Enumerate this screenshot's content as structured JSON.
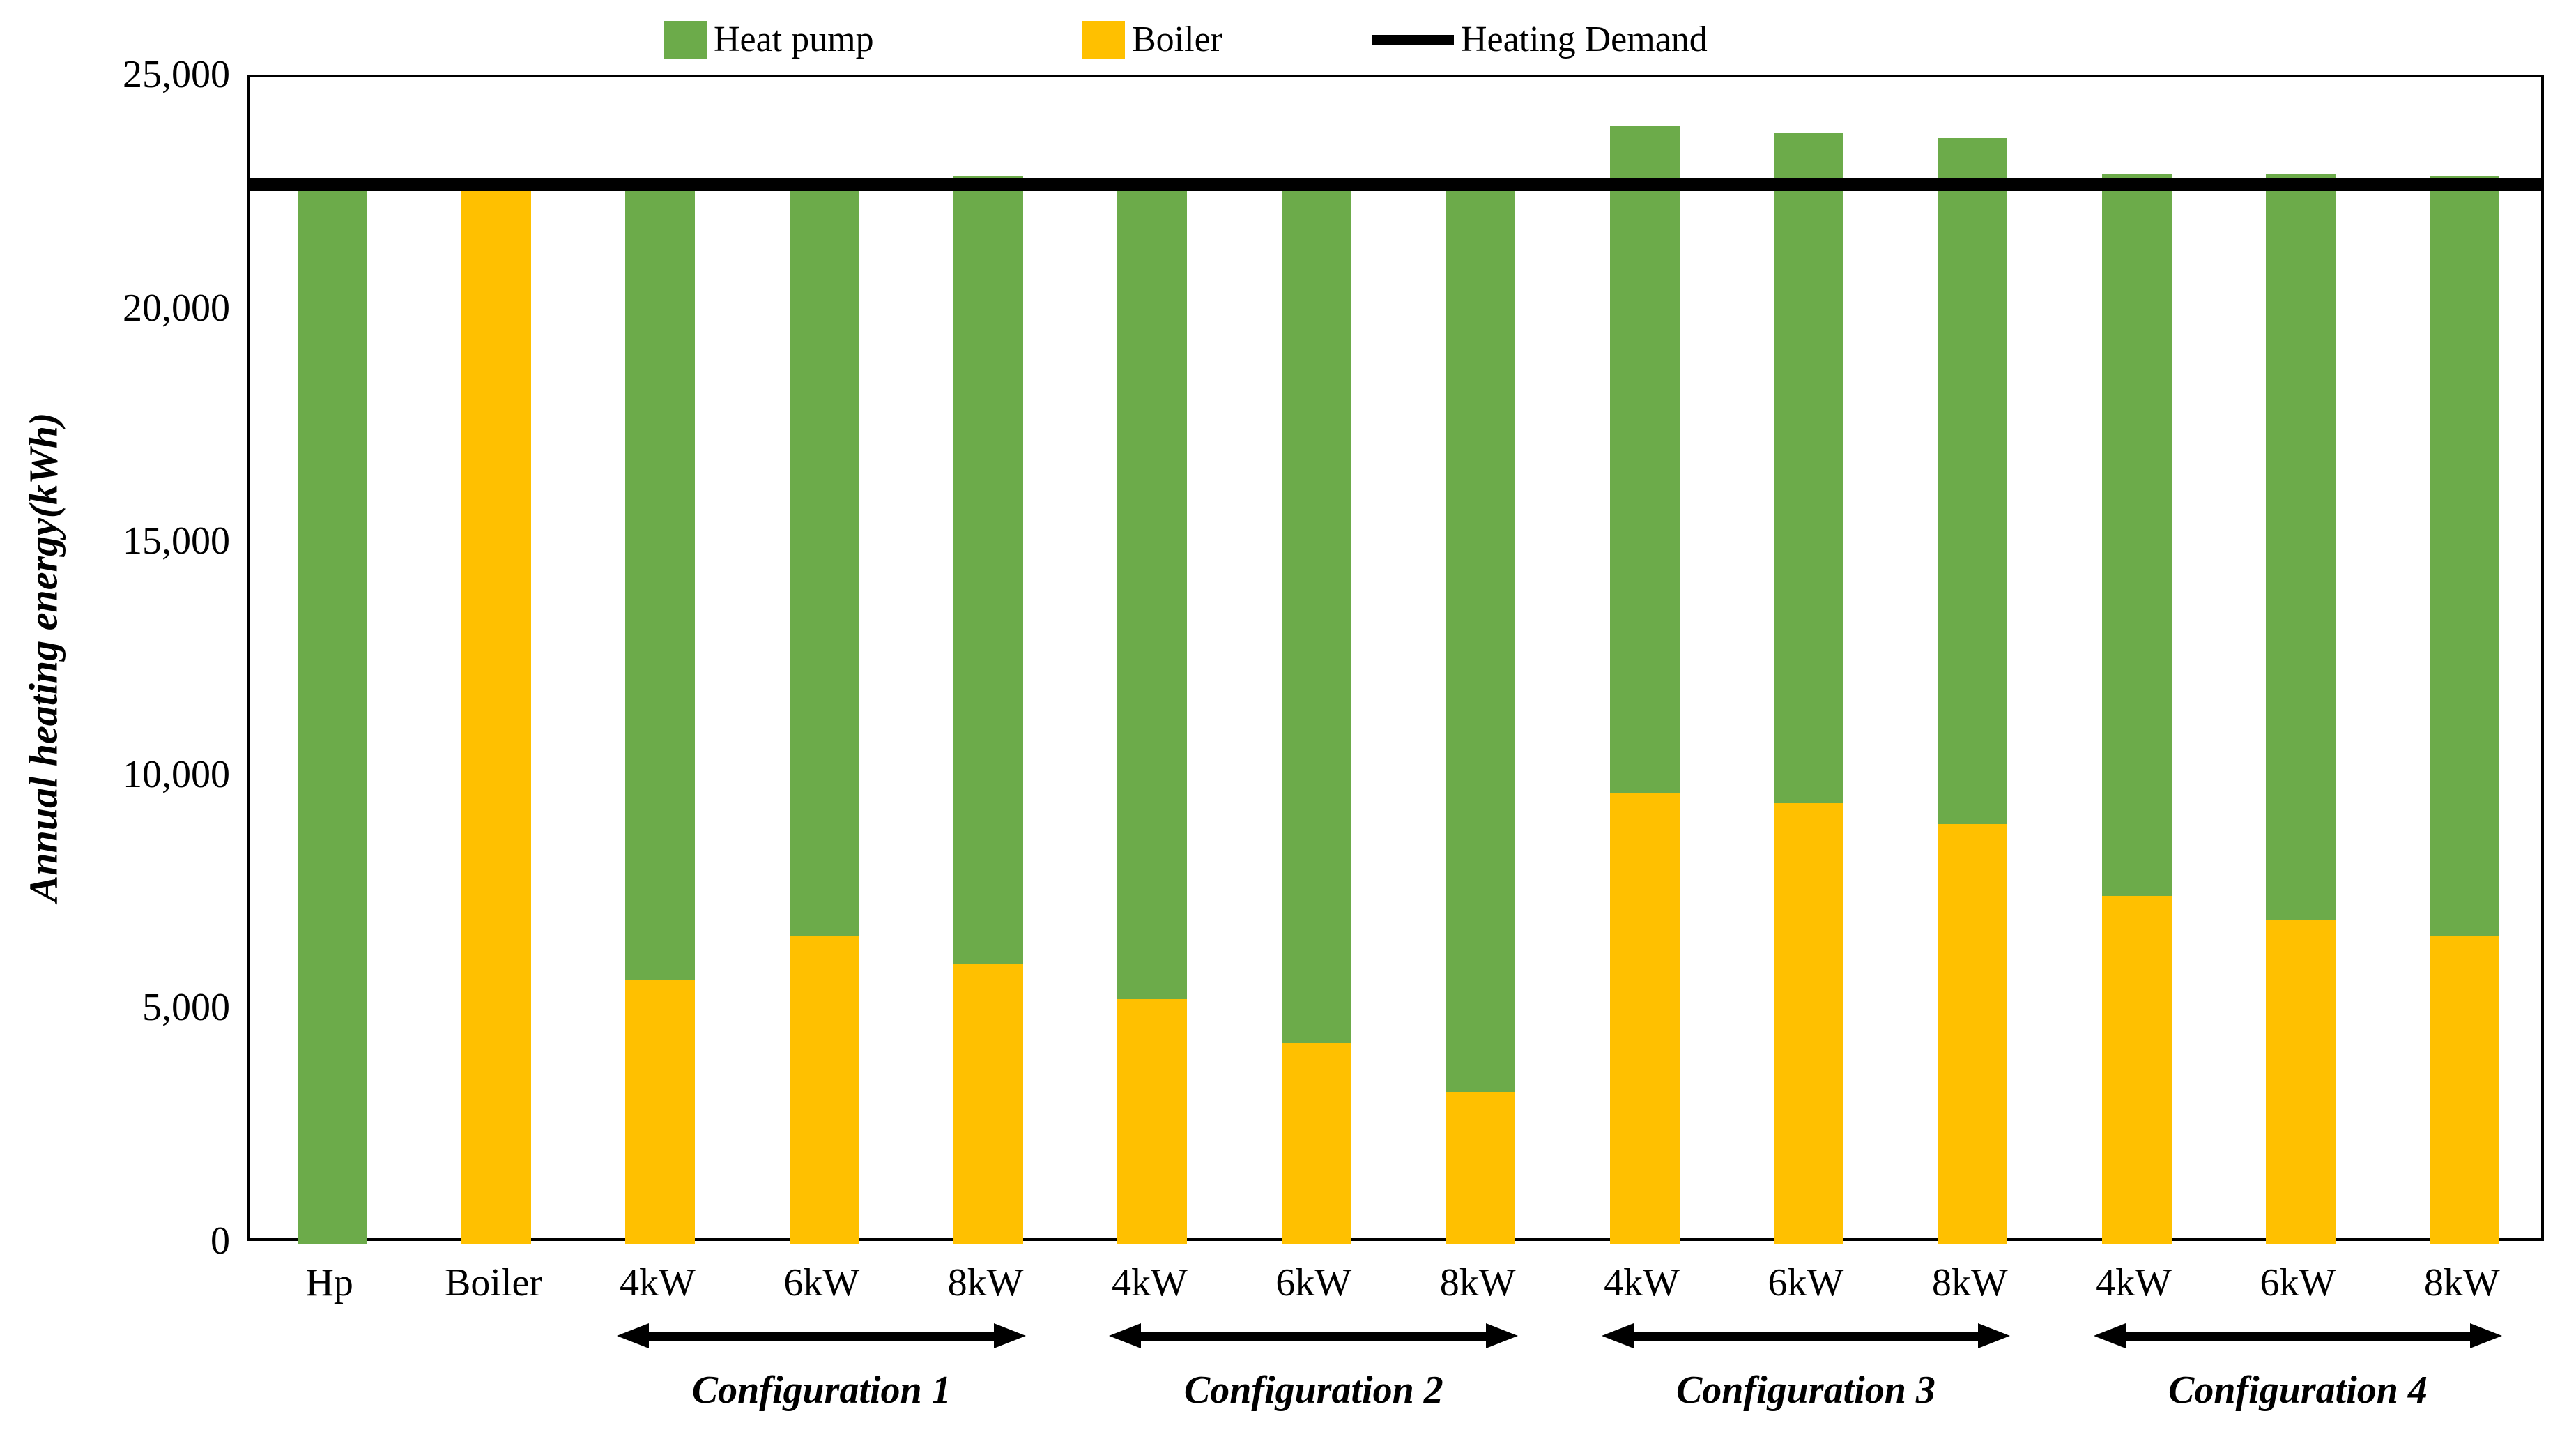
{
  "chart_data": {
    "type": "bar",
    "stacked": true,
    "ylabel": "Annual heating energy(kWh)",
    "ylim": [
      0,
      25000
    ],
    "grid": false,
    "ytick_labels": [
      "0",
      "5,000",
      "10,000",
      "15,000",
      "20,000",
      "25,000"
    ],
    "ytick_values": [
      0,
      5000,
      10000,
      15000,
      20000,
      25000
    ],
    "categories": [
      "Hp",
      "Boiler",
      "4kW",
      "6kW",
      "8kW",
      "4kW",
      "6kW",
      "8kW",
      "4kW",
      "6kW",
      "8kW",
      "4kW",
      "6kW",
      "8kW"
    ],
    "series": [
      {
        "name": "Boiler",
        "color": "#FFC000",
        "values": [
          0,
          22800,
          5650,
          6600,
          6000,
          5250,
          4300,
          3250,
          9650,
          9450,
          9000,
          7450,
          6950,
          6600
        ]
      },
      {
        "name": "Heat pump",
        "color": "#6CAB4A",
        "values": [
          22600,
          0,
          17150,
          16250,
          16900,
          17350,
          18300,
          19350,
          14300,
          14350,
          14700,
          15480,
          15980,
          16300
        ]
      }
    ],
    "totals": [
      22600,
      22800,
      22800,
      22850,
      22900,
      22600,
      22600,
      22600,
      23950,
      23800,
      23700,
      22930,
      22930,
      22900
    ],
    "reference_line": {
      "label": "Heating Demand",
      "value": 22700,
      "color": "#000000"
    },
    "legend": [
      {
        "label": "Heat pump",
        "type": "swatch",
        "color": "#6CAB4A"
      },
      {
        "label": "Boiler",
        "type": "swatch",
        "color": "#FFC000"
      },
      {
        "label": "Heating Demand",
        "type": "line",
        "color": "#000000"
      }
    ],
    "legend_position": "top",
    "groups": [
      {
        "label": "Configuration 1",
        "from_index": 2,
        "to_index": 4
      },
      {
        "label": "Configuration 2",
        "from_index": 5,
        "to_index": 7
      },
      {
        "label": "Configuration 3",
        "from_index": 8,
        "to_index": 10
      },
      {
        "label": "Configuration 4",
        "from_index": 11,
        "to_index": 13
      }
    ]
  }
}
